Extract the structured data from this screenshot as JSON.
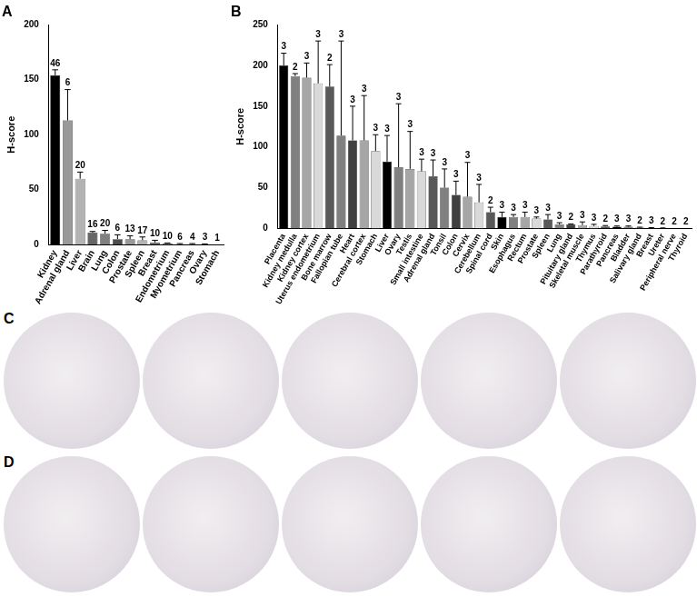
{
  "chart_data": [
    {
      "type": "bar",
      "title": "A",
      "y_label": "H-score",
      "categories": [
        "Kidney",
        "Adrenal gland",
        "Liver",
        "Brain",
        "Lung",
        "Colon",
        "Prostate",
        "Spleen",
        "Breast",
        "Endometrium",
        "Myometrium",
        "Pancreas",
        "Ovary",
        "Stomach"
      ],
      "values": [
        154,
        113,
        60,
        11,
        10,
        5,
        5,
        4,
        2,
        1,
        0.5,
        0.5,
        0.3,
        0
      ],
      "errors": [
        5,
        28,
        6,
        1,
        3,
        4,
        3,
        3,
        2,
        0.5,
        0.5,
        0.5,
        0.3,
        0
      ],
      "n": [
        46,
        6,
        20,
        16,
        20,
        6,
        13,
        17,
        10,
        10,
        6,
        4,
        3,
        1
      ],
      "colors": [
        "#000000",
        "#999999",
        "#b3b3b3",
        "#666666",
        "#808080",
        "#4d4d4d",
        "#999999",
        "#b3b3b3",
        "#666666",
        "#808080",
        "#4d4d4d",
        "#999999",
        "#b3b3b3",
        "#666666"
      ],
      "ylim": [
        0,
        200
      ],
      "yticks": [
        0,
        50,
        100,
        150,
        200
      ],
      "grid": false
    },
    {
      "type": "bar",
      "title": "B",
      "y_label": "H-score",
      "categories": [
        "Placenta",
        "Kidney medulla",
        "Kidney cortex",
        "Uterus endometrium",
        "Bone marrow",
        "Fallopian tube",
        "Heart",
        "Cerebral cortex",
        "Stomach",
        "Liver",
        "Ovary",
        "Testis",
        "Small intestine",
        "Adrenal gland",
        "Tonsil",
        "Colon",
        "Cervix",
        "Cerebellum",
        "Spinal cord",
        "Skin",
        "Esophagus",
        "Rectum",
        "Prostate",
        "Spleen",
        "Lung",
        "Pituitary gland",
        "Skeletal muscle",
        "Thymus",
        "Parathyroid",
        "Pancreas",
        "Bladder",
        "Salivary gland",
        "Breast",
        "Ureter",
        "Peripheral nerve",
        "Thyroid"
      ],
      "values": [
        200,
        187,
        185,
        178,
        174,
        114,
        108,
        108,
        95,
        82,
        75,
        73,
        70,
        64,
        50,
        41,
        39,
        32,
        20,
        14,
        14,
        14,
        12,
        11,
        5,
        5,
        4,
        3,
        2.5,
        2,
        2,
        1,
        0.5,
        0.3,
        0,
        0
      ],
      "errors": [
        15,
        3,
        18,
        52,
        27,
        116,
        42,
        55,
        20,
        32,
        78,
        46,
        15,
        20,
        23,
        17,
        42,
        22,
        6,
        6,
        3,
        6,
        2,
        6,
        2,
        0.5,
        4,
        2,
        1,
        1,
        1,
        0.5,
        0.5,
        0.3,
        0,
        0
      ],
      "n": [
        3,
        2,
        3,
        3,
        2,
        3,
        3,
        3,
        3,
        3,
        3,
        3,
        3,
        3,
        3,
        3,
        3,
        3,
        2,
        3,
        3,
        3,
        3,
        3,
        3,
        2,
        3,
        3,
        2,
        3,
        3,
        2,
        3,
        2,
        2,
        2
      ],
      "colors": [
        "#000000",
        "#808080",
        "#a6a6a6",
        "#d9d9d9",
        "#595959",
        "#808080",
        "#404040",
        "#a6a6a6",
        "#d9d9d9",
        "#000000",
        "#808080",
        "#a6a6a6",
        "#d9d9d9",
        "#595959",
        "#808080",
        "#404040",
        "#a6a6a6",
        "#d9d9d9",
        "#595959",
        "#000000",
        "#808080",
        "#a6a6a6",
        "#d9d9d9",
        "#595959",
        "#808080",
        "#404040",
        "#a6a6a6",
        "#d9d9d9",
        "#595959",
        "#000000",
        "#808080",
        "#a6a6a6",
        "#d9d9d9",
        "#595959",
        "#808080",
        "#404040"
      ],
      "ylim": [
        0,
        250
      ],
      "yticks": [
        0,
        50,
        100,
        150,
        200,
        250
      ],
      "grid": false
    }
  ],
  "image_panels": [
    "C",
    "D"
  ]
}
